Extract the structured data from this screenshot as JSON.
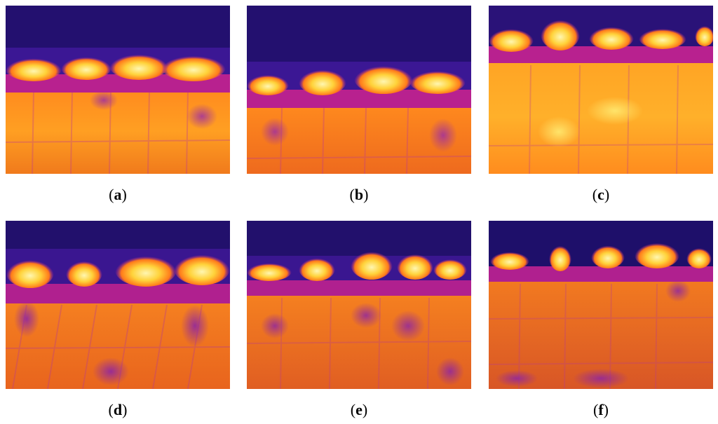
{
  "figure": {
    "panels": [
      {
        "id": "a",
        "label": "a",
        "heat_band": "lower",
        "hot_clusters": 4
      },
      {
        "id": "b",
        "label": "b",
        "heat_band": "lower",
        "hot_clusters": 4
      },
      {
        "id": "c",
        "label": "c",
        "heat_band": "upper",
        "hot_clusters": 6
      },
      {
        "id": "d",
        "label": "d",
        "heat_band": "lower",
        "hot_clusters": 4
      },
      {
        "id": "e",
        "label": "e",
        "heat_band": "lower",
        "hot_clusters": 5
      },
      {
        "id": "f",
        "label": "f",
        "heat_band": "upper",
        "hot_clusters": 6
      }
    ],
    "colormap": {
      "cold": "#1e0f6e",
      "cool": "#4b1aa0",
      "mid": "#c2288f",
      "warm": "#ff7a1a",
      "hot": "#ffd23a",
      "hottest": "#fff6b0"
    }
  }
}
